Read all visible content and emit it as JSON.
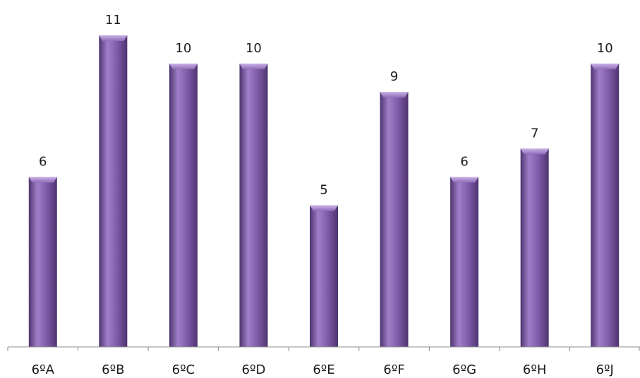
{
  "chart_data": {
    "type": "bar",
    "categories": [
      "6ºA",
      "6ºB",
      "6ºC",
      "6ºD",
      "6ºE",
      "6ºF",
      "6ºG",
      "6ºH",
      "6ºJ"
    ],
    "values": [
      6,
      11,
      10,
      10,
      5,
      9,
      6,
      7,
      10
    ],
    "title": "",
    "xlabel": "",
    "ylabel": "",
    "ylim": [
      0,
      11
    ],
    "grid": false,
    "legend": "none",
    "data_labels": true,
    "colors": {
      "bar": "#7d5aa6",
      "bar_dark": "#4e3470",
      "bar_light": "#a07fc8",
      "axis": "#8c8c8c"
    }
  }
}
